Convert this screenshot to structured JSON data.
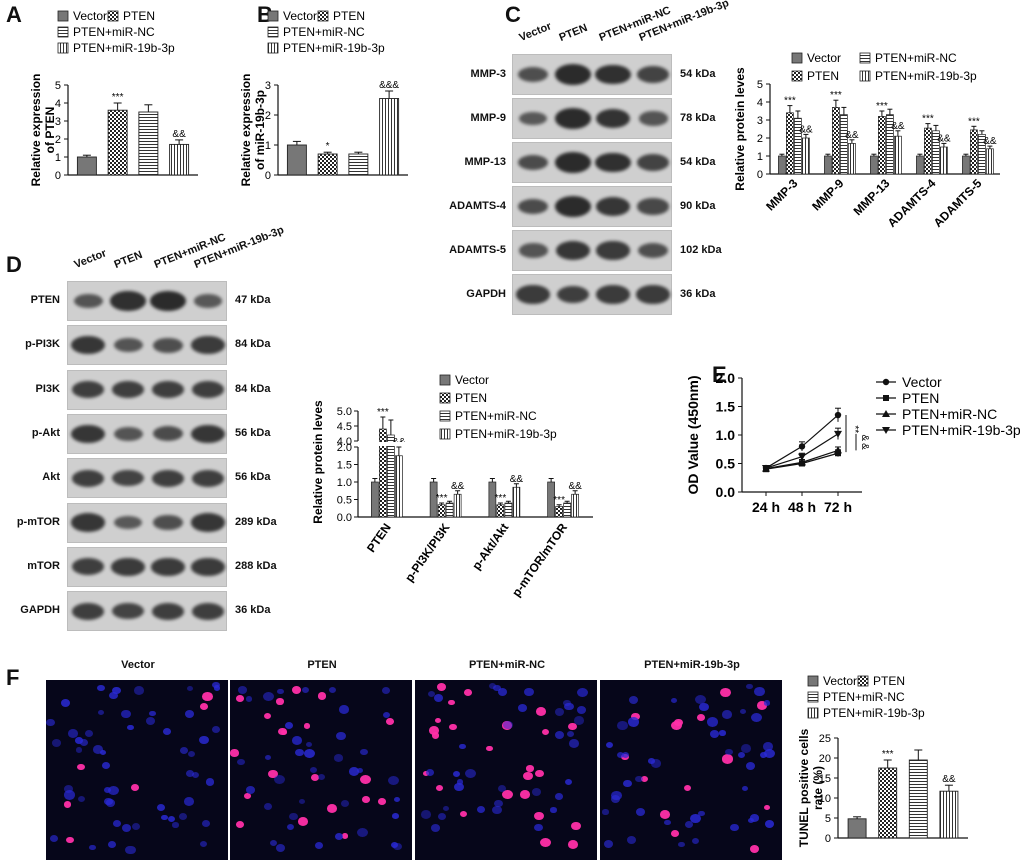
{
  "panels": {
    "A": {
      "letter": "A",
      "ylabel": [
        "Relative expression",
        "of PTEN"
      ],
      "legend": [
        "Vector",
        "PTEN",
        "PTEN+miR-NC",
        "PTEN+miR-19b-3p"
      ],
      "chart_data": {
        "type": "bar",
        "categories": [
          "Vector",
          "PTEN",
          "PTEN+miR-NC",
          "PTEN+miR-19b-3p"
        ],
        "values": [
          1.0,
          3.6,
          3.5,
          1.7
        ],
        "errors": [
          0.1,
          0.4,
          0.4,
          0.25
        ],
        "ylim": [
          0,
          5
        ],
        "yticks": [
          0,
          1,
          2,
          3,
          4,
          5
        ],
        "annotations": [
          "",
          "***",
          "",
          "&&"
        ]
      }
    },
    "B": {
      "letter": "B",
      "ylabel": [
        "Relative expression",
        "of miR-19b-3p"
      ],
      "legend": [
        "Vector",
        "PTEN",
        "PTEN+miR-NC",
        "PTEN+miR-19b-3p"
      ],
      "chart_data": {
        "type": "bar",
        "categories": [
          "Vector",
          "PTEN",
          "PTEN+miR-NC",
          "PTEN+miR-19b-3p"
        ],
        "values": [
          1.0,
          0.7,
          0.7,
          2.55
        ],
        "errors": [
          0.12,
          0.06,
          0.06,
          0.25
        ],
        "ylim": [
          0,
          3
        ],
        "yticks": [
          0,
          1,
          2,
          3
        ],
        "annotations": [
          "",
          "*",
          "",
          "&&&"
        ]
      }
    },
    "C": {
      "letter": "C",
      "lanes": [
        "Vector",
        "PTEN",
        "PTEN+miR-NC",
        "PTEN+miR-19b-3p"
      ],
      "blots": [
        {
          "name": "MMP-3",
          "kda": "54 kDa",
          "intensity": [
            0.55,
            1.0,
            0.95,
            0.7
          ]
        },
        {
          "name": "MMP-9",
          "kda": "78 kDa",
          "intensity": [
            0.45,
            1.0,
            0.9,
            0.5
          ]
        },
        {
          "name": "MMP-13",
          "kda": "54 kDa",
          "intensity": [
            0.6,
            1.0,
            0.95,
            0.7
          ]
        },
        {
          "name": "ADAMTS-4",
          "kda": "90 kDa",
          "intensity": [
            0.6,
            1.0,
            0.85,
            0.65
          ]
        },
        {
          "name": "ADAMTS-5",
          "kda": "102 kDa",
          "intensity": [
            0.5,
            0.85,
            0.8,
            0.55
          ]
        },
        {
          "name": "GAPDH",
          "kda": "36 kDa",
          "intensity": [
            0.8,
            0.75,
            0.8,
            0.8
          ]
        }
      ],
      "ylabel": "Relative protein leves",
      "legend": [
        "Vector",
        "PTEN+miR-NC",
        "PTEN",
        "PTEN+miR-19b-3p"
      ],
      "chart_data": {
        "type": "bar",
        "categories": [
          "MMP-3",
          "MMP-9",
          "MMP-13",
          "ADAMTS-4",
          "ADAMTS-5"
        ],
        "series": [
          {
            "name": "Vector",
            "values": [
              1.0,
              1.0,
              1.0,
              1.0,
              1.0
            ],
            "errors": [
              0.1,
              0.1,
              0.1,
              0.1,
              0.1
            ]
          },
          {
            "name": "PTEN",
            "values": [
              3.4,
              3.7,
              3.2,
              2.55,
              2.45
            ],
            "errors": [
              0.4,
              0.4,
              0.3,
              0.25,
              0.2
            ]
          },
          {
            "name": "PTEN+miR-NC",
            "values": [
              3.1,
              3.3,
              3.3,
              2.4,
              2.2
            ],
            "errors": [
              0.4,
              0.4,
              0.3,
              0.3,
              0.2
            ]
          },
          {
            "name": "PTEN+miR-19b-3p",
            "values": [
              2.0,
              1.7,
              2.1,
              1.5,
              1.4
            ],
            "errors": [
              0.2,
              0.2,
              0.3,
              0.2,
              0.15
            ]
          }
        ],
        "ylim": [
          0,
          5
        ],
        "yticks": [
          0,
          1,
          2,
          3,
          4,
          5
        ],
        "annotations_pten": "***",
        "annotations_mir": "&&"
      }
    },
    "D": {
      "letter": "D",
      "lanes": [
        "Vector",
        "PTEN",
        "PTEN+miR-NC",
        "PTEN+miR-19b-3p"
      ],
      "blots": [
        {
          "name": "PTEN",
          "kda": "47 kDa",
          "intensity": [
            0.5,
            0.95,
            1.0,
            0.45
          ]
        },
        {
          "name": "p-PI3K",
          "kda": "84 kDa",
          "intensity": [
            0.85,
            0.5,
            0.55,
            0.8
          ]
        },
        {
          "name": "PI3K",
          "kda": "84 kDa",
          "intensity": [
            0.75,
            0.75,
            0.75,
            0.75
          ]
        },
        {
          "name": "p-Akt",
          "kda": "56 kDa",
          "intensity": [
            0.85,
            0.5,
            0.6,
            0.85
          ]
        },
        {
          "name": "Akt",
          "kda": "56 kDa",
          "intensity": [
            0.75,
            0.7,
            0.75,
            0.75
          ]
        },
        {
          "name": "p-mTOR",
          "kda": "289 kDa",
          "intensity": [
            0.85,
            0.45,
            0.55,
            0.85
          ]
        },
        {
          "name": "mTOR",
          "kda": "288 kDa",
          "intensity": [
            0.75,
            0.8,
            0.8,
            0.8
          ]
        },
        {
          "name": "GAPDH",
          "kda": "36 kDa",
          "intensity": [
            0.75,
            0.7,
            0.75,
            0.75
          ]
        }
      ],
      "ylabel": "Relative protein leves",
      "legend": [
        "Vector",
        "PTEN",
        "PTEN+miR-NC",
        "PTEN+miR-19b-3p"
      ],
      "chart_data": {
        "type": "bar",
        "categories": [
          "PTEN",
          "p-PI3K/PI3K",
          "p-Akt/Akt",
          "p-mTOR/mTOR"
        ],
        "series": [
          {
            "name": "Vector",
            "values": [
              1.0,
              1.0,
              1.0,
              1.0
            ],
            "errors": [
              0.1,
              0.1,
              0.1,
              0.1
            ]
          },
          {
            "name": "PTEN",
            "values": [
              4.4,
              0.35,
              0.35,
              0.3
            ],
            "errors": [
              0.4,
              0.05,
              0.05,
              0.05
            ]
          },
          {
            "name": "PTEN+miR-NC",
            "values": [
              4.2,
              0.4,
              0.4,
              0.4
            ],
            "errors": [
              0.5,
              0.05,
              0.05,
              0.05
            ]
          },
          {
            "name": "PTEN+miR-19b-3p",
            "values": [
              1.75,
              0.65,
              0.85,
              0.65
            ],
            "errors": [
              0.25,
              0.1,
              0.1,
              0.1
            ]
          }
        ],
        "yticks_lower": [
          "0.0",
          "0.5",
          "1.0",
          "1.5",
          "2.0"
        ],
        "yticks_upper": [
          "4.0",
          "4.5",
          "5.0"
        ],
        "axis_break": [
          2.0,
          4.0
        ],
        "annotations_pten": "***",
        "annotations_mir": "&&"
      }
    },
    "E": {
      "letter": "E",
      "ylabel": "OD Value (450nm)",
      "legend": [
        "Vector",
        "PTEN",
        "PTEN+miR-NC",
        "PTEN+miR-19b-3p"
      ],
      "chart_data": {
        "type": "line",
        "x": [
          "24 h",
          "48 h",
          "72 h"
        ],
        "series": [
          {
            "name": "Vector",
            "values": [
              0.42,
              0.8,
              1.35
            ],
            "errors": [
              0.03,
              0.08,
              0.12
            ]
          },
          {
            "name": "PTEN",
            "values": [
              0.4,
              0.5,
              0.68
            ],
            "errors": [
              0.03,
              0.05,
              0.06
            ]
          },
          {
            "name": "PTEN+miR-NC",
            "values": [
              0.41,
              0.52,
              0.73
            ],
            "errors": [
              0.03,
              0.05,
              0.06
            ]
          },
          {
            "name": "PTEN+miR-19b-3p",
            "values": [
              0.42,
              0.62,
              1.02
            ],
            "errors": [
              0.03,
              0.06,
              0.1
            ]
          }
        ],
        "ylim": [
          0,
          2.0
        ],
        "yticks": [
          "0.0",
          "0.5",
          "1.0",
          "1.5",
          "2.0"
        ],
        "sig_labels": [
          "**",
          "&",
          "&"
        ]
      }
    },
    "F": {
      "letter": "F",
      "image_titles": [
        "Vector",
        "PTEN",
        "PTEN+miR-NC",
        "PTEN+miR-19b-3p"
      ],
      "positive_fraction": [
        0.05,
        0.17,
        0.2,
        0.12
      ],
      "ylabel": [
        "TUNEL positive cells",
        "rate (%)"
      ],
      "legend": [
        "Vector",
        "PTEN",
        "PTEN+miR-NC",
        "PTEN+miR-19b-3p"
      ],
      "chart_data": {
        "type": "bar",
        "categories": [
          "Vector",
          "PTEN",
          "PTEN+miR-NC",
          "PTEN+miR-19b-3p"
        ],
        "values": [
          4.8,
          17.5,
          19.5,
          11.7
        ],
        "errors": [
          0.5,
          2.0,
          2.5,
          1.5
        ],
        "ylim": [
          0,
          25
        ],
        "yticks": [
          0,
          5,
          10,
          15,
          20,
          25
        ],
        "annotations": [
          "",
          "***",
          "",
          "&&"
        ]
      }
    }
  }
}
